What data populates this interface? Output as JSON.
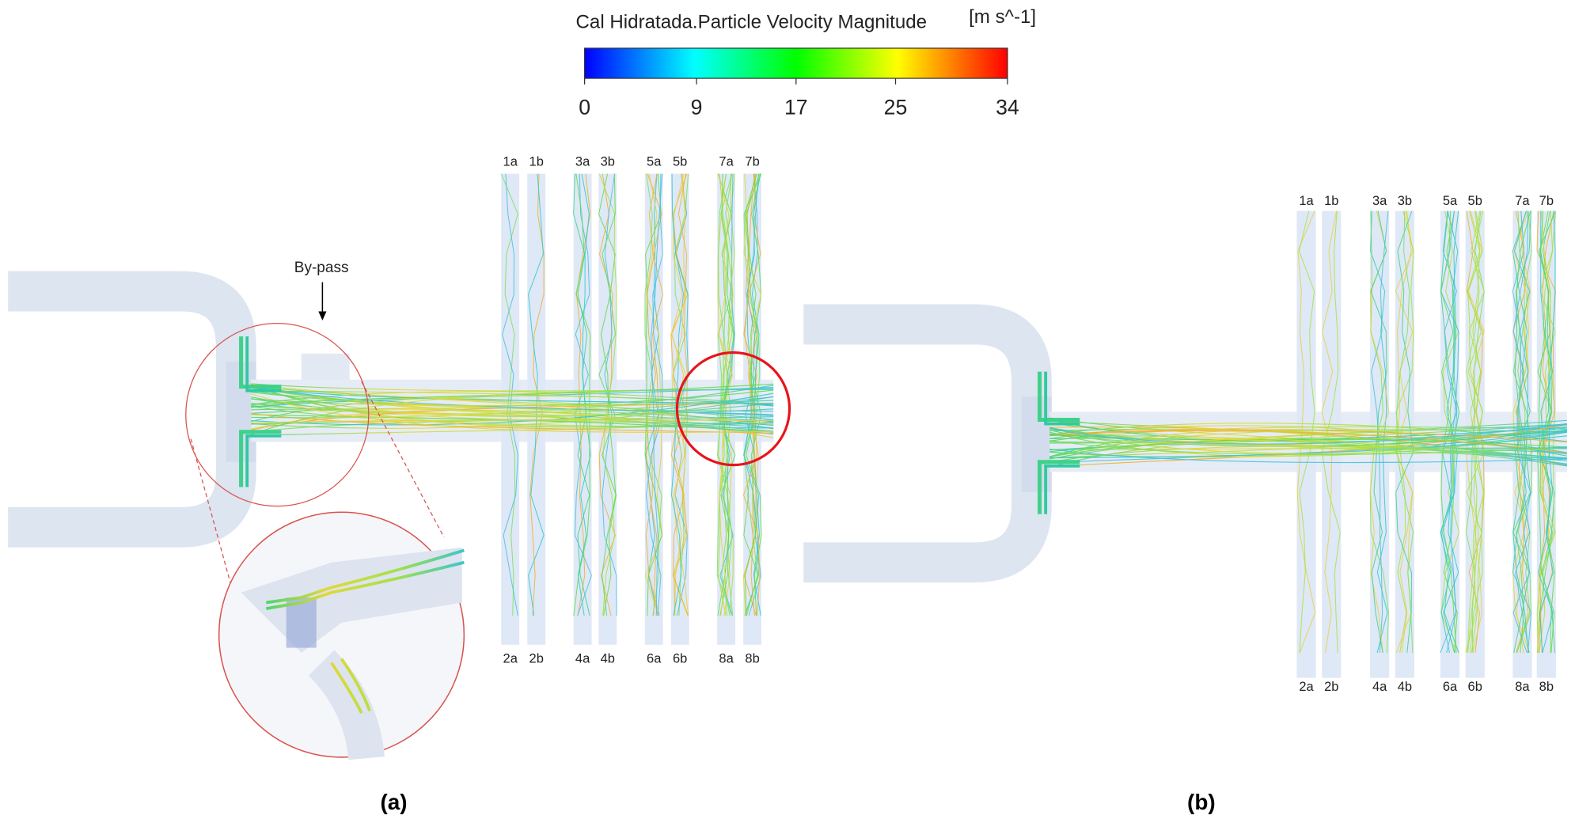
{
  "colorbar": {
    "title": "Cal Hidratada.Particle Velocity Magnitude",
    "unit": "[m s^-1]",
    "range": [
      0,
      34
    ],
    "ticks": [
      0,
      9,
      17,
      25,
      34
    ]
  },
  "panel_a": {
    "label": "(a)",
    "annotation": "By-pass",
    "ports_top": [
      "1a",
      "1b",
      "3a",
      "3b",
      "5a",
      "5b",
      "7a",
      "7b"
    ],
    "ports_bottom": [
      "2a",
      "2b",
      "4a",
      "4b",
      "6a",
      "6b",
      "8a",
      "8b"
    ]
  },
  "panel_b": {
    "label": "(b)",
    "ports_top": [
      "1a",
      "1b",
      "3a",
      "3b",
      "5a",
      "5b",
      "7a",
      "7b"
    ],
    "ports_bottom": [
      "2a",
      "2b",
      "4a",
      "4b",
      "6a",
      "6b",
      "8a",
      "8b"
    ]
  }
}
